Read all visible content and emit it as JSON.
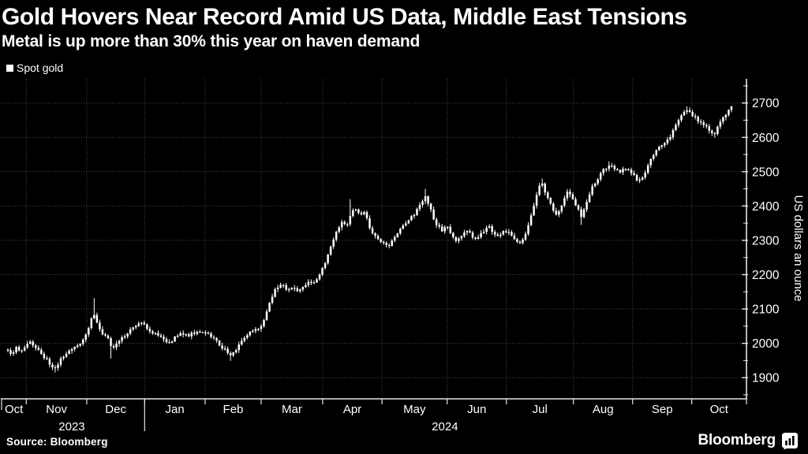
{
  "header": {
    "title": "Gold Hovers Near Record Amid US Data, Middle East Tensions",
    "subtitle": "Metal is up more than 30% this year on haven demand"
  },
  "legend": {
    "items": [
      {
        "label": "Spot gold",
        "swatch_color": "#ffffff"
      }
    ]
  },
  "footer": {
    "source": "Source: Bloomberg",
    "brand": "Bloomberg"
  },
  "colors": {
    "background": "#000000",
    "text": "#ffffff",
    "grid": "#4a4a4a",
    "axis": "#e6e6e6",
    "series": "#ffffff"
  },
  "chart_data": {
    "type": "ohlc-bars",
    "series_name": "Spot gold",
    "title": "Gold Hovers Near Record Amid US Data, Middle East Tensions",
    "ylabel": "US dollars an ounce",
    "y_ticks_labeled": [
      1900,
      2000,
      2100,
      2200,
      2300,
      2400,
      2500,
      2600,
      2700
    ],
    "y_minor_step": 50,
    "y_domain": [
      1838,
      2770
    ],
    "grid": "dotted",
    "legend_position": "top-left",
    "x_month_boundaries_f": [
      2.54,
      10.9,
      18.9,
      27.26,
      35.0,
      43.5,
      51.7,
      60.7,
      68.9,
      78.16,
      86.34,
      94.51
    ],
    "x_months": [
      {
        "label": "Oct",
        "f": 0.84
      },
      {
        "label": "Nov",
        "f": 6.72
      },
      {
        "label": "Dec",
        "f": 14.9
      },
      {
        "label": "Jan",
        "f": 23.08
      },
      {
        "label": "Feb",
        "f": 31.13
      },
      {
        "label": "Mar",
        "f": 39.25
      },
      {
        "label": "Apr",
        "f": 47.6
      },
      {
        "label": "May",
        "f": 56.2
      },
      {
        "label": "Jun",
        "f": 64.8
      },
      {
        "label": "Jul",
        "f": 73.53
      },
      {
        "label": "Aug",
        "f": 82.25
      },
      {
        "label": "Sep",
        "f": 90.43
      },
      {
        "label": "Oct",
        "f": 98.29
      }
    ],
    "x_years": [
      {
        "label": "2023",
        "f": 8.83
      },
      {
        "label": "2024",
        "f": 60.4
      }
    ],
    "year_separator_f": 18.9,
    "left_edge_tick_f": -0.87,
    "n_bars": 261,
    "anchors": [
      [
        0,
        1978
      ],
      [
        0.44,
        1964
      ],
      [
        1.09,
        1988
      ],
      [
        1.85,
        1973
      ],
      [
        2.51,
        1997
      ],
      [
        3.05,
        2006
      ],
      [
        3.93,
        1985
      ],
      [
        4.91,
        1962
      ],
      [
        5.67,
        1943
      ],
      [
        6.43,
        1926
      ],
      [
        7.2,
        1950
      ],
      [
        8.07,
        1968
      ],
      [
        8.94,
        1988
      ],
      [
        9.81,
        1998
      ],
      [
        10.58,
        2015
      ],
      [
        11.23,
        2045
      ],
      [
        11.78,
        2088
      ],
      [
        12.32,
        2055
      ],
      [
        13.09,
        2028
      ],
      [
        13.85,
        2012
      ],
      [
        14.39,
        1982
      ],
      [
        15.05,
        2000
      ],
      [
        16.03,
        2022
      ],
      [
        17.01,
        2038
      ],
      [
        18.1,
        2060
      ],
      [
        18.87,
        2052
      ],
      [
        19.85,
        2035
      ],
      [
        20.72,
        2022
      ],
      [
        21.59,
        2010
      ],
      [
        22.25,
        1998
      ],
      [
        23.12,
        2018
      ],
      [
        23.99,
        2030
      ],
      [
        24.86,
        2022
      ],
      [
        25.74,
        2030
      ],
      [
        26.61,
        2038
      ],
      [
        27.26,
        2032
      ],
      [
        27.92,
        2025
      ],
      [
        28.57,
        2012
      ],
      [
        29.44,
        1992
      ],
      [
        30.21,
        1975
      ],
      [
        30.75,
        1962
      ],
      [
        31.41,
        1980
      ],
      [
        32.17,
        2000
      ],
      [
        32.93,
        2022
      ],
      [
        33.81,
        2035
      ],
      [
        34.57,
        2042
      ],
      [
        35.22,
        2060
      ],
      [
        35.77,
        2092
      ],
      [
        36.42,
        2130
      ],
      [
        37.08,
        2162
      ],
      [
        37.84,
        2172
      ],
      [
        38.6,
        2158
      ],
      [
        39.37,
        2166
      ],
      [
        40.13,
        2152
      ],
      [
        40.89,
        2168
      ],
      [
        41.55,
        2182
      ],
      [
        42.2,
        2172
      ],
      [
        42.86,
        2192
      ],
      [
        43.51,
        2222
      ],
      [
        44.17,
        2252
      ],
      [
        44.82,
        2292
      ],
      [
        45.47,
        2330
      ],
      [
        46.13,
        2352
      ],
      [
        46.78,
        2340
      ],
      [
        47.44,
        2378
      ],
      [
        47.98,
        2392
      ],
      [
        48.64,
        2370
      ],
      [
        49.29,
        2380
      ],
      [
        49.95,
        2340
      ],
      [
        50.6,
        2318
      ],
      [
        51.25,
        2300
      ],
      [
        51.91,
        2290
      ],
      [
        52.56,
        2282
      ],
      [
        53.22,
        2300
      ],
      [
        53.87,
        2320
      ],
      [
        54.53,
        2338
      ],
      [
        55.18,
        2352
      ],
      [
        55.83,
        2368
      ],
      [
        56.49,
        2388
      ],
      [
        57.14,
        2412
      ],
      [
        57.69,
        2428
      ],
      [
        58.23,
        2400
      ],
      [
        58.78,
        2368
      ],
      [
        59.32,
        2342
      ],
      [
        59.98,
        2330
      ],
      [
        60.63,
        2342
      ],
      [
        61.29,
        2320
      ],
      [
        61.94,
        2300
      ],
      [
        62.6,
        2312
      ],
      [
        63.25,
        2328
      ],
      [
        63.9,
        2318
      ],
      [
        64.56,
        2302
      ],
      [
        65.21,
        2315
      ],
      [
        65.87,
        2330
      ],
      [
        66.52,
        2340
      ],
      [
        67.18,
        2318
      ],
      [
        67.83,
        2306
      ],
      [
        68.48,
        2328
      ],
      [
        69.14,
        2322
      ],
      [
        69.79,
        2310
      ],
      [
        70.45,
        2298
      ],
      [
        70.99,
        2292
      ],
      [
        71.54,
        2322
      ],
      [
        72.08,
        2358
      ],
      [
        72.63,
        2392
      ],
      [
        73.17,
        2442
      ],
      [
        73.72,
        2468
      ],
      [
        74.26,
        2440
      ],
      [
        74.81,
        2410
      ],
      [
        75.35,
        2392
      ],
      [
        75.9,
        2372
      ],
      [
        76.44,
        2400
      ],
      [
        76.99,
        2428
      ],
      [
        77.54,
        2445
      ],
      [
        78.08,
        2420
      ],
      [
        78.63,
        2398
      ],
      [
        79.17,
        2368
      ],
      [
        79.72,
        2398
      ],
      [
        80.26,
        2432
      ],
      [
        80.81,
        2458
      ],
      [
        81.46,
        2478
      ],
      [
        82.01,
        2498
      ],
      [
        82.66,
        2512
      ],
      [
        83.21,
        2520
      ],
      [
        83.86,
        2505
      ],
      [
        84.51,
        2498
      ],
      [
        85.17,
        2508
      ],
      [
        85.82,
        2502
      ],
      [
        86.48,
        2492
      ],
      [
        87.02,
        2472
      ],
      [
        87.57,
        2482
      ],
      [
        88.11,
        2502
      ],
      [
        88.77,
        2532
      ],
      [
        89.42,
        2558
      ],
      [
        90.08,
        2572
      ],
      [
        90.73,
        2582
      ],
      [
        91.38,
        2598
      ],
      [
        92.04,
        2622
      ],
      [
        92.69,
        2652
      ],
      [
        93.24,
        2668
      ],
      [
        93.78,
        2682
      ],
      [
        94.33,
        2672
      ],
      [
        94.87,
        2658
      ],
      [
        95.42,
        2648
      ],
      [
        96.07,
        2638
      ],
      [
        96.62,
        2628
      ],
      [
        97.16,
        2618
      ],
      [
        97.71,
        2608
      ],
      [
        98.25,
        2642
      ],
      [
        98.8,
        2660
      ],
      [
        99.35,
        2672
      ],
      [
        100,
        2686
      ]
    ],
    "spikes_high": [
      [
        11.78,
        2132
      ],
      [
        47.44,
        2420
      ],
      [
        57.69,
        2450
      ],
      [
        73.72,
        2480
      ],
      [
        83.21,
        2530
      ],
      [
        93.78,
        2690
      ],
      [
        100,
        2690
      ]
    ],
    "spikes_low": [
      [
        6.43,
        1915
      ],
      [
        14.39,
        1956
      ],
      [
        30.75,
        1949
      ],
      [
        79.17,
        2345
      ],
      [
        97.71,
        2599
      ]
    ]
  }
}
